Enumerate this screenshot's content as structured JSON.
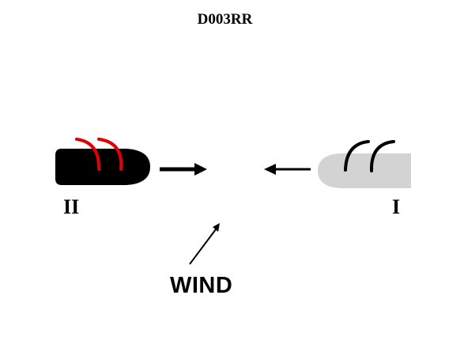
{
  "title": "D003RR",
  "labels": {
    "left": "II",
    "right": "I",
    "wind": "WIND"
  },
  "colors": {
    "left_hand": "#000000",
    "left_arcs": "#e00000",
    "right_hand": "#d3d3d3",
    "right_arcs": "#000000",
    "arrows": "#000000"
  },
  "icons": {
    "left": "fist-pointing-right-icon",
    "right": "fist-pointing-left-icon",
    "movement_left": "arrow-right-icon",
    "movement_right": "arrow-left-icon",
    "wind": "arrow-up-right-icon"
  }
}
